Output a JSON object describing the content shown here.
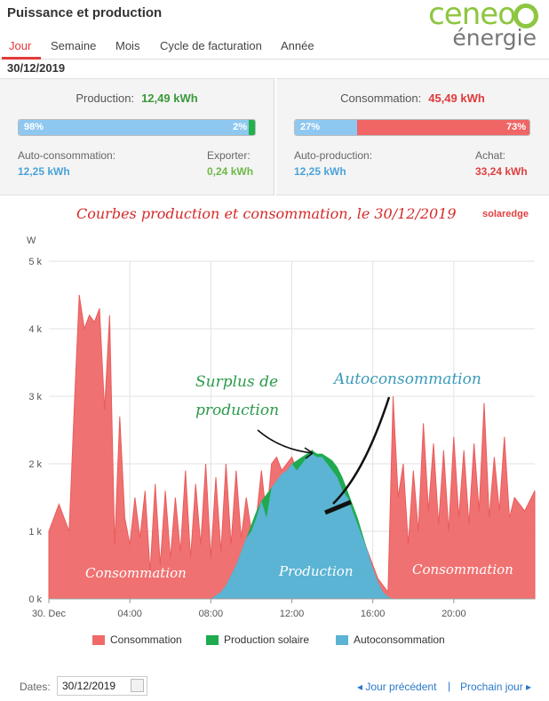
{
  "app": {
    "title": "Puissance et production"
  },
  "logo": {
    "brand": "ceneo",
    "sub": "énergie"
  },
  "tabs": [
    "Jour",
    "Semaine",
    "Mois",
    "Cycle de facturation",
    "Année"
  ],
  "date_header": "30/12/2019",
  "production": {
    "label": "Production:",
    "value": "12,49 kWh",
    "bar_left_pct": "98%",
    "bar_right_pct": "2%",
    "left_label": "Auto-consommation:",
    "left_value": "12,25 kWh",
    "right_label": "Exporter:",
    "right_value": "0,24 kWh"
  },
  "consumption": {
    "label": "Consommation:",
    "value": "45,49 kWh",
    "bar_left_pct": "27%",
    "bar_right_pct": "73%",
    "left_label": "Auto-production:",
    "left_value": "12,25 kWh",
    "right_label": "Achat:",
    "right_value": "33,24 kWh"
  },
  "colors": {
    "consumption": "#f06a6a",
    "production": "#1faa50",
    "autoconsumption": "#5bb4d4",
    "prod_green_text": "#3a9a3a",
    "cons_red_text": "#e03a3a",
    "blue_text": "#4aa3d8",
    "bar_blue": "#8ec8f0",
    "bar_green": "#22b14c",
    "bar_red": "#f06565"
  },
  "annotations": {
    "title": "Courbes production et consommation, le 30/12/2019",
    "watermark": "solaredge",
    "surplus_line1": "Surplus de",
    "surplus_line2": "production",
    "autoconso": "Autoconsommation",
    "area_left": "Consommation",
    "area_mid": "Production",
    "area_right": "Consommation"
  },
  "chart_data": {
    "type": "area",
    "ylabel": "W",
    "ylim": [
      0,
      5000
    ],
    "yticks": [
      "0 k",
      "1 k",
      "2 k",
      "3 k",
      "4 k",
      "5 k"
    ],
    "xticks": [
      "30. Dec",
      "04:00",
      "08:00",
      "12:00",
      "16:00",
      "20:00"
    ],
    "x_hours": [
      0,
      0.5,
      1,
      1.25,
      1.5,
      1.75,
      2,
      2.25,
      2.5,
      2.75,
      3,
      3.25,
      3.5,
      3.75,
      4,
      4.25,
      4.5,
      4.75,
      5,
      5.25,
      5.5,
      5.75,
      6,
      6.25,
      6.5,
      6.75,
      7,
      7.25,
      7.5,
      7.75,
      8,
      8.25,
      8.5,
      8.75,
      9,
      9.25,
      9.5,
      9.75,
      10,
      10.25,
      10.5,
      10.75,
      11,
      11.25,
      11.5,
      11.75,
      12,
      12.25,
      12.5,
      12.75,
      13,
      13.25,
      13.5,
      13.75,
      14,
      14.25,
      14.5,
      14.75,
      15,
      15.25,
      15.5,
      15.75,
      16,
      16.25,
      16.5,
      16.75,
      17,
      17.25,
      17.5,
      17.75,
      18,
      18.25,
      18.5,
      18.75,
      19,
      19.25,
      19.5,
      19.75,
      20,
      20.25,
      20.5,
      20.75,
      21,
      21.25,
      21.5,
      21.75,
      22,
      22.25,
      22.5,
      22.75,
      23,
      23.5,
      24
    ],
    "series": [
      {
        "name": "Consommation",
        "values": [
          1000,
          1400,
          1000,
          2800,
          4500,
          4000,
          4200,
          4100,
          4300,
          2800,
          4200,
          800,
          2700,
          1200,
          800,
          1500,
          900,
          1600,
          400,
          1700,
          500,
          1600,
          600,
          1500,
          700,
          1900,
          600,
          1700,
          800,
          2000,
          600,
          1800,
          700,
          2000,
          800,
          1900,
          900,
          1500,
          1000,
          1200,
          1900,
          1200,
          2000,
          2100,
          1900,
          2000,
          2100,
          1900,
          2000,
          2100,
          2200,
          2100,
          2100,
          2000,
          1900,
          1800,
          1600,
          1500,
          1300,
          1100,
          900,
          700,
          500,
          300,
          200,
          100,
          3000,
          1500,
          2000,
          800,
          1900,
          1000,
          2600,
          1300,
          2300,
          1100,
          2200,
          1000,
          2400,
          1200,
          2200,
          1100,
          2300,
          1300,
          2900,
          1200,
          2100,
          1300,
          2400,
          1200,
          1500,
          1300,
          1600
        ]
      },
      {
        "name": "Production solaire",
        "values": [
          0,
          0,
          0,
          0,
          0,
          0,
          0,
          0,
          0,
          0,
          0,
          0,
          0,
          0,
          0,
          0,
          0,
          0,
          0,
          0,
          0,
          0,
          0,
          0,
          0,
          0,
          0,
          0,
          0,
          0,
          0,
          50,
          100,
          200,
          350,
          500,
          700,
          900,
          1100,
          1300,
          1450,
          1550,
          1650,
          1750,
          1850,
          1900,
          2000,
          2050,
          2100,
          2150,
          2200,
          2150,
          2150,
          2100,
          2050,
          1950,
          1800,
          1600,
          1400,
          1200,
          950,
          700,
          450,
          250,
          100,
          30,
          0,
          0,
          0,
          0,
          0,
          0,
          0,
          0,
          0,
          0,
          0,
          0,
          0,
          0,
          0,
          0,
          0,
          0,
          0,
          0,
          0,
          0,
          0,
          0,
          0,
          0,
          0
        ]
      },
      {
        "name": "Autoconsommation",
        "values": [
          0,
          0,
          0,
          0,
          0,
          0,
          0,
          0,
          0,
          0,
          0,
          0,
          0,
          0,
          0,
          0,
          0,
          0,
          0,
          0,
          0,
          0,
          0,
          0,
          0,
          0,
          0,
          0,
          0,
          0,
          0,
          50,
          100,
          200,
          350,
          500,
          700,
          900,
          1000,
          1200,
          1450,
          1200,
          1650,
          1750,
          1850,
          1900,
          2000,
          1900,
          2000,
          2100,
          2150,
          2100,
          2100,
          2000,
          1900,
          1800,
          1600,
          1500,
          1300,
          1100,
          900,
          700,
          450,
          250,
          100,
          30,
          0,
          0,
          0,
          0,
          0,
          0,
          0,
          0,
          0,
          0,
          0,
          0,
          0,
          0,
          0,
          0,
          0,
          0,
          0,
          0,
          0,
          0,
          0,
          0,
          0,
          0,
          0
        ]
      }
    ],
    "legend": [
      "Consommation",
      "Production solaire",
      "Autoconsommation"
    ],
    "legend_position": "bottom",
    "grid": true
  },
  "footer": {
    "dates_label": "Dates:",
    "date_value": "30/12/2019",
    "prev": "◂ Jour précédent",
    "sep": "|",
    "next": "Prochain jour ▸"
  }
}
